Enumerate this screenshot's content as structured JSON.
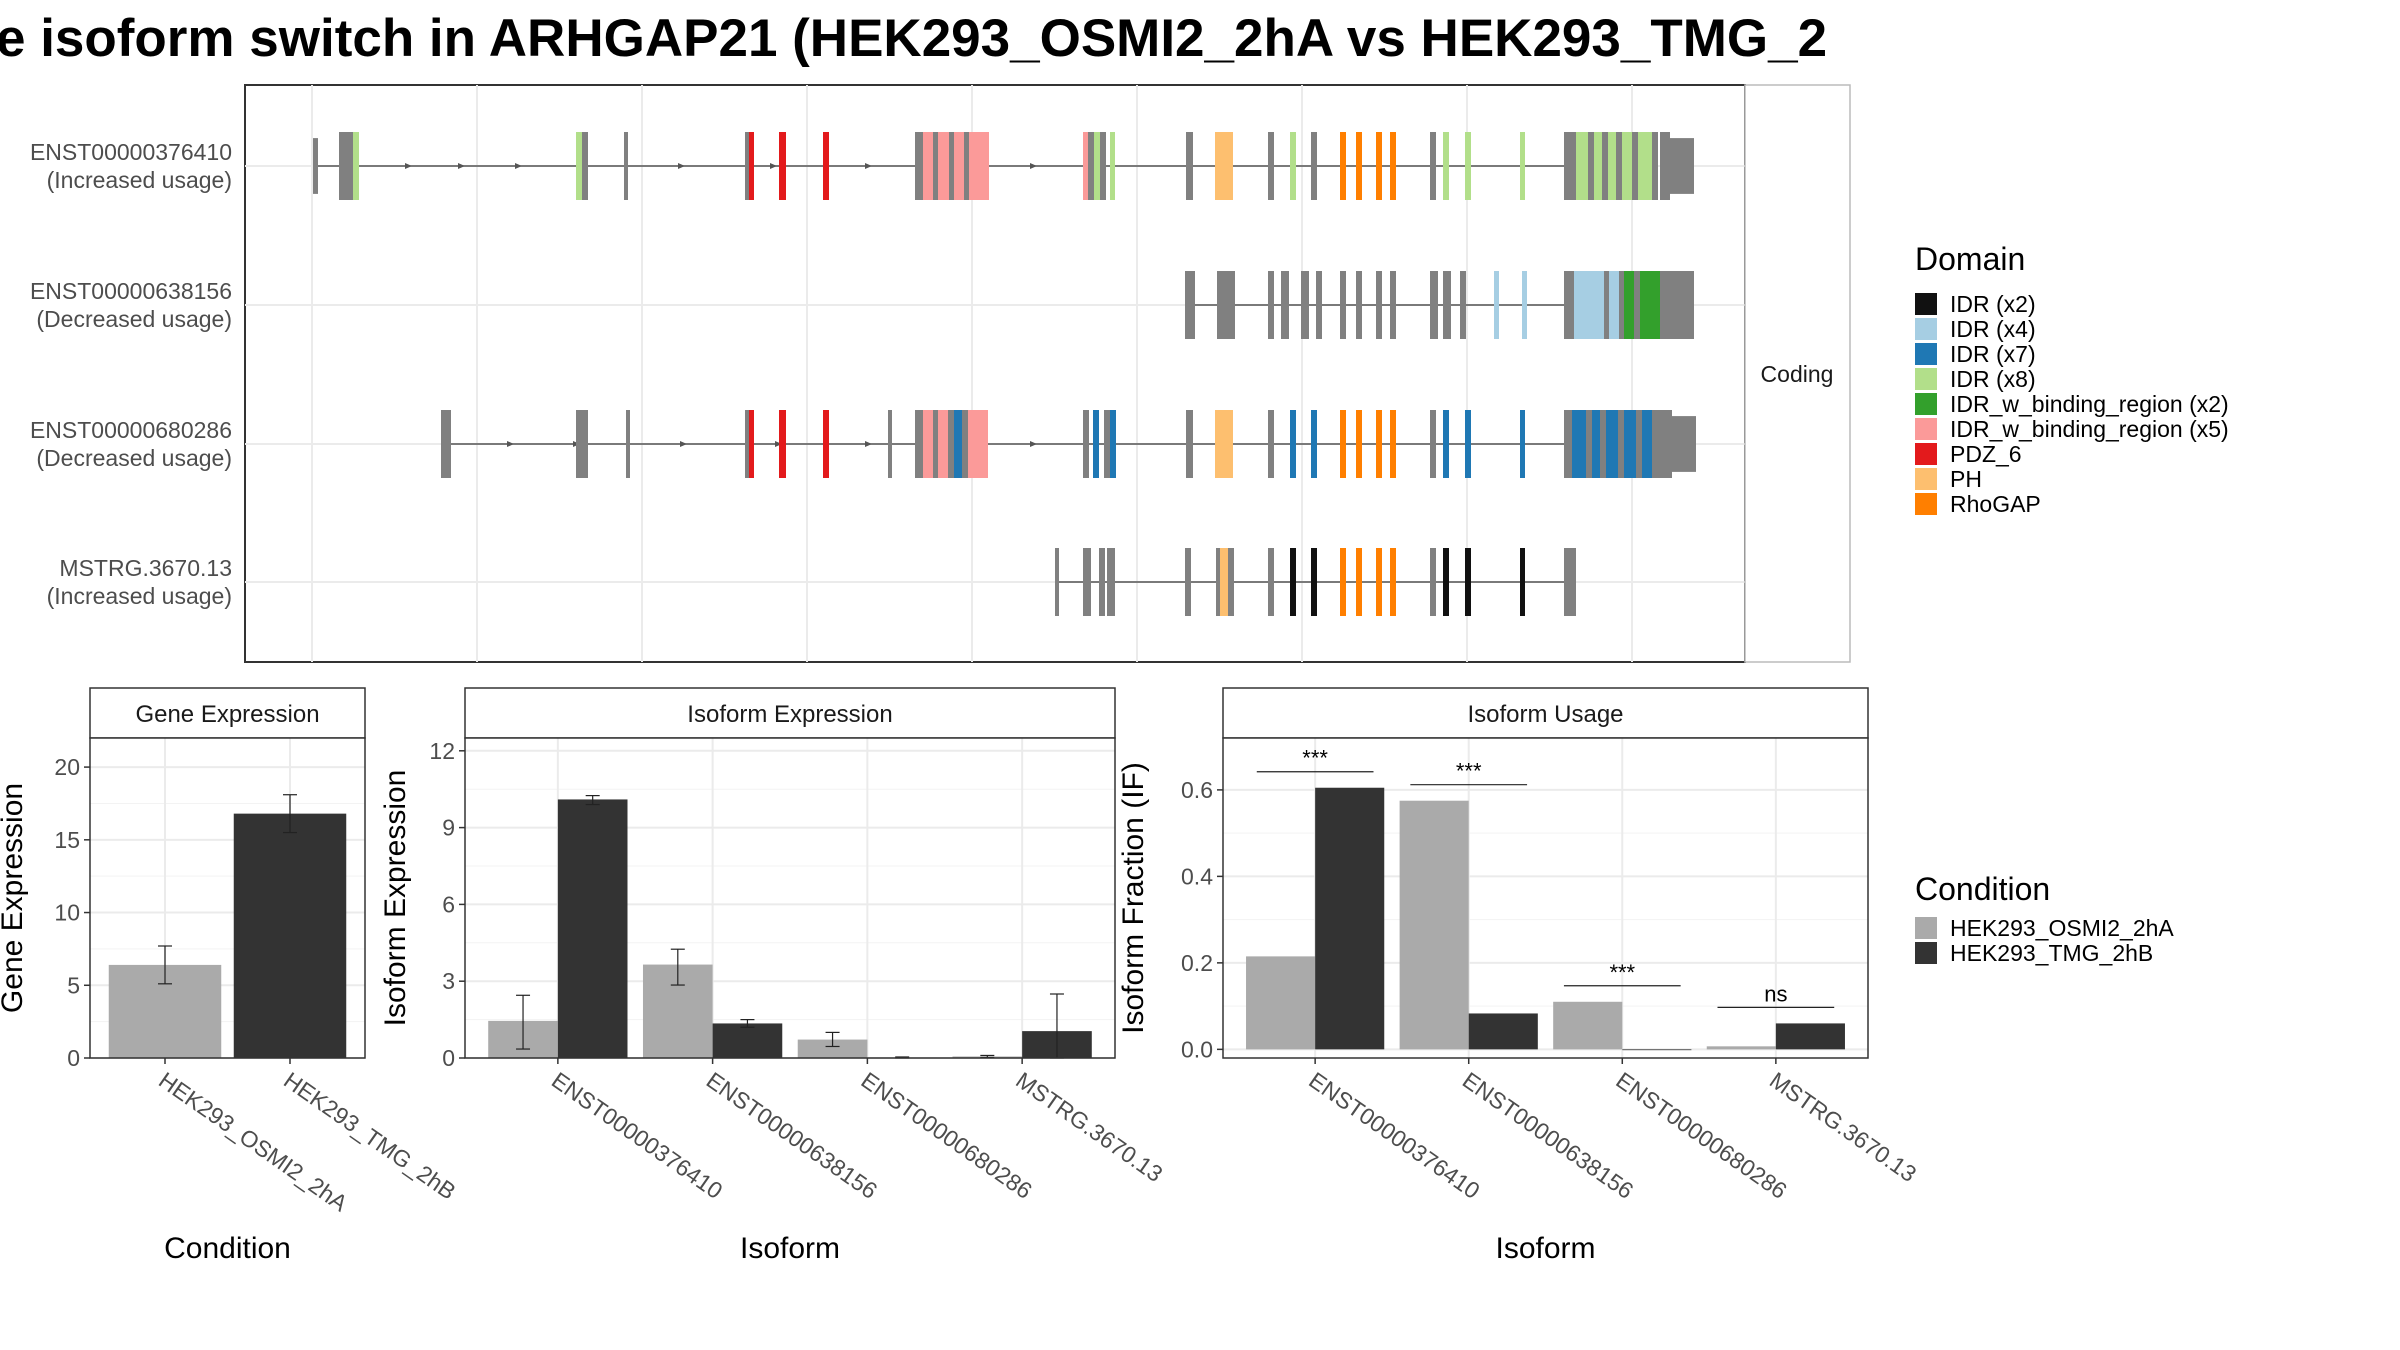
{
  "title": "e isoform switch in ARHGAP21 (HEK293_OSMI2_2hA vs HEK293_TMG_2",
  "colors": {
    "IDR (x2)": "#111111",
    "IDR (x4)": "#a6cee3",
    "IDR (x7)": "#1f78b4",
    "IDR (x8)": "#b2df8a",
    "IDR_w_binding_region (x2)": "#33a02c",
    "IDR_w_binding_region (x5)": "#fb9a99",
    "PDZ_6": "#e31a1c",
    "PH": "#fdbf6f",
    "RhoGAP": "#ff7f00",
    "exon": "#808080",
    "cond_a": "#aaaaaa",
    "cond_b": "#333333",
    "facet_bg": "#ffffff",
    "grid": "#ebebeb"
  },
  "domain_legend": {
    "title": "Domain",
    "items": [
      "IDR (x2)",
      "IDR (x4)",
      "IDR (x7)",
      "IDR (x8)",
      "IDR_w_binding_region (x2)",
      "IDR_w_binding_region (x5)",
      "PDZ_6",
      "PH",
      "RhoGAP"
    ]
  },
  "condition_legend": {
    "title": "Condition",
    "items": [
      "HEK293_OSMI2_2hA",
      "HEK293_TMG_2hB"
    ]
  },
  "transcript_panel": {
    "strip_label": "Coding",
    "transcripts": [
      {
        "id": "ENST00000376410",
        "usage": "(Increased usage)"
      },
      {
        "id": "ENST00000638156",
        "usage": "(Decreased usage)"
      },
      {
        "id": "ENST00000680286",
        "usage": "(Decreased usage)"
      },
      {
        "id": "MSTRG.3670.13",
        "usage": "(Increased usage)"
      }
    ]
  },
  "chart_data": [
    {
      "type": "bar",
      "title": "Gene Expression",
      "xlabel": "Condition",
      "ylabel": "Gene Expression",
      "categories": [
        "HEK293_OSMI2_2hA",
        "HEK293_TMG_2hB"
      ],
      "values": [
        6.4,
        16.8
      ],
      "errors": [
        [
          5.1,
          7.7
        ],
        [
          15.5,
          18.1
        ]
      ],
      "ylim": [
        0,
        22
      ],
      "yticks": [
        0,
        5,
        10,
        15,
        20
      ],
      "grid": true
    },
    {
      "type": "bar",
      "title": "Isoform Expression",
      "xlabel": "Isoform",
      "ylabel": "Isoform Expression",
      "categories": [
        "ENST00000376410",
        "ENST00000638156",
        "ENST00000680286",
        "MSTRG.3670.13"
      ],
      "series": [
        {
          "name": "HEK293_OSMI2_2hA",
          "values": [
            1.45,
            3.65,
            0.72,
            0.06
          ],
          "errors": [
            [
              0.35,
              2.45
            ],
            [
              2.85,
              4.25
            ],
            [
              0.45,
              1.0
            ],
            [
              0.02,
              0.1
            ]
          ]
        },
        {
          "name": "HEK293_TMG_2hB",
          "values": [
            10.1,
            1.35,
            0.02,
            1.05
          ],
          "errors": [
            [
              9.9,
              10.25
            ],
            [
              1.2,
              1.5
            ],
            [
              0.0,
              0.04
            ],
            [
              0.0,
              2.5
            ]
          ]
        }
      ],
      "ylim": [
        0,
        12.5
      ],
      "yticks": [
        0,
        3,
        6,
        9,
        12
      ],
      "grid": true
    },
    {
      "type": "bar",
      "title": "Isoform Usage",
      "xlabel": "Isoform",
      "ylabel": "Isoform Fraction (IF)",
      "categories": [
        "ENST00000376410",
        "ENST00000638156",
        "ENST00000680286",
        "MSTRG.3670.13"
      ],
      "series": [
        {
          "name": "HEK293_OSMI2_2hA",
          "values": [
            0.215,
            0.575,
            0.11,
            0.007
          ]
        },
        {
          "name": "HEK293_TMG_2hB",
          "values": [
            0.605,
            0.083,
            0.0,
            0.06
          ]
        }
      ],
      "significance": [
        "***",
        "***",
        "***",
        "ns"
      ],
      "ylim": [
        -0.02,
        0.72
      ],
      "yticks": [
        0.0,
        0.2,
        0.4,
        0.6
      ],
      "ytick_labels": [
        "0.0",
        "0.2",
        "0.4",
        "0.6"
      ],
      "grid": true
    }
  ]
}
